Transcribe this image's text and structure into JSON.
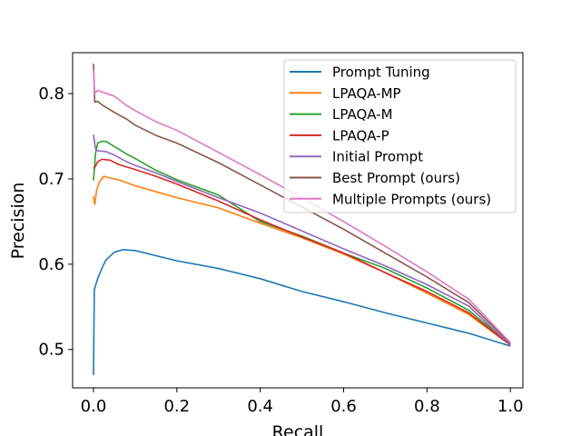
{
  "chart_data": {
    "type": "line",
    "title": "",
    "xlabel": "Recall",
    "ylabel": "Precision",
    "xlim": [
      -0.05,
      1.03
    ],
    "ylim": [
      0.455,
      0.848
    ],
    "xticks": [
      0.0,
      0.2,
      0.4,
      0.6,
      0.8,
      1.0
    ],
    "xtick_labels": [
      "0.0",
      "0.2",
      "0.4",
      "0.6",
      "0.8",
      "1.0"
    ],
    "yticks": [
      0.5,
      0.6,
      0.7,
      0.8
    ],
    "ytick_labels": [
      "0.5",
      "0.6",
      "0.7",
      "0.8"
    ],
    "grid": false,
    "legend_position": "top-right",
    "series": [
      {
        "name": "Prompt Tuning",
        "color": "#1f77b4",
        "points": [
          [
            0.0,
            0.47
          ],
          [
            0.002,
            0.57
          ],
          [
            0.005,
            0.575
          ],
          [
            0.01,
            0.583
          ],
          [
            0.02,
            0.595
          ],
          [
            0.03,
            0.605
          ],
          [
            0.05,
            0.614
          ],
          [
            0.07,
            0.617
          ],
          [
            0.1,
            0.616
          ],
          [
            0.15,
            0.61
          ],
          [
            0.2,
            0.604
          ],
          [
            0.3,
            0.595
          ],
          [
            0.4,
            0.583
          ],
          [
            0.5,
            0.568
          ],
          [
            0.6,
            0.556
          ],
          [
            0.7,
            0.543
          ],
          [
            0.8,
            0.531
          ],
          [
            0.9,
            0.519
          ],
          [
            1.0,
            0.504
          ]
        ]
      },
      {
        "name": "LPAQA-MP",
        "color": "#ff7f0e",
        "points": [
          [
            0.0,
            0.68
          ],
          [
            0.003,
            0.67
          ],
          [
            0.008,
            0.688
          ],
          [
            0.015,
            0.697
          ],
          [
            0.025,
            0.703
          ],
          [
            0.04,
            0.701
          ],
          [
            0.06,
            0.699
          ],
          [
            0.1,
            0.692
          ],
          [
            0.15,
            0.685
          ],
          [
            0.2,
            0.678
          ],
          [
            0.3,
            0.666
          ],
          [
            0.4,
            0.648
          ],
          [
            0.5,
            0.631
          ],
          [
            0.6,
            0.612
          ],
          [
            0.7,
            0.59
          ],
          [
            0.8,
            0.566
          ],
          [
            0.9,
            0.541
          ],
          [
            1.0,
            0.505
          ]
        ]
      },
      {
        "name": "LPAQA-M",
        "color": "#2ca02c",
        "points": [
          [
            0.0,
            0.698
          ],
          [
            0.005,
            0.73
          ],
          [
            0.01,
            0.742
          ],
          [
            0.02,
            0.744
          ],
          [
            0.03,
            0.744
          ],
          [
            0.05,
            0.738
          ],
          [
            0.08,
            0.729
          ],
          [
            0.1,
            0.724
          ],
          [
            0.15,
            0.71
          ],
          [
            0.2,
            0.699
          ],
          [
            0.3,
            0.681
          ],
          [
            0.4,
            0.65
          ],
          [
            0.5,
            0.633
          ],
          [
            0.6,
            0.613
          ],
          [
            0.7,
            0.595
          ],
          [
            0.8,
            0.572
          ],
          [
            0.9,
            0.546
          ],
          [
            1.0,
            0.506
          ]
        ]
      },
      {
        "name": "LPAQA-P",
        "color": "#d62728",
        "points": [
          [
            0.0,
            0.712
          ],
          [
            0.005,
            0.715
          ],
          [
            0.01,
            0.72
          ],
          [
            0.02,
            0.723
          ],
          [
            0.04,
            0.722
          ],
          [
            0.06,
            0.717
          ],
          [
            0.1,
            0.711
          ],
          [
            0.15,
            0.703
          ],
          [
            0.2,
            0.694
          ],
          [
            0.3,
            0.674
          ],
          [
            0.4,
            0.652
          ],
          [
            0.5,
            0.632
          ],
          [
            0.6,
            0.613
          ],
          [
            0.7,
            0.59
          ],
          [
            0.8,
            0.568
          ],
          [
            0.9,
            0.543
          ],
          [
            1.0,
            0.505
          ]
        ]
      },
      {
        "name": "Initial Prompt",
        "color": "#9467bd",
        "points": [
          [
            0.0,
            0.752
          ],
          [
            0.005,
            0.735
          ],
          [
            0.01,
            0.733
          ],
          [
            0.03,
            0.732
          ],
          [
            0.05,
            0.728
          ],
          [
            0.08,
            0.72
          ],
          [
            0.1,
            0.716
          ],
          [
            0.15,
            0.707
          ],
          [
            0.2,
            0.697
          ],
          [
            0.3,
            0.678
          ],
          [
            0.4,
            0.66
          ],
          [
            0.5,
            0.639
          ],
          [
            0.6,
            0.618
          ],
          [
            0.7,
            0.598
          ],
          [
            0.8,
            0.576
          ],
          [
            0.9,
            0.551
          ],
          [
            1.0,
            0.505
          ]
        ]
      },
      {
        "name": "Best Prompt (ours)",
        "color": "#8c564b",
        "points": [
          [
            0.0,
            0.835
          ],
          [
            0.003,
            0.79
          ],
          [
            0.01,
            0.791
          ],
          [
            0.02,
            0.787
          ],
          [
            0.05,
            0.778
          ],
          [
            0.08,
            0.77
          ],
          [
            0.1,
            0.763
          ],
          [
            0.15,
            0.751
          ],
          [
            0.2,
            0.742
          ],
          [
            0.3,
            0.719
          ],
          [
            0.4,
            0.693
          ],
          [
            0.5,
            0.667
          ],
          [
            0.6,
            0.641
          ],
          [
            0.7,
            0.613
          ],
          [
            0.8,
            0.585
          ],
          [
            0.9,
            0.555
          ],
          [
            1.0,
            0.507
          ]
        ]
      },
      {
        "name": "Multiple Prompts (ours)",
        "color": "#e377c2",
        "points": [
          [
            0.0,
            0.828
          ],
          [
            0.003,
            0.8
          ],
          [
            0.01,
            0.804
          ],
          [
            0.02,
            0.802
          ],
          [
            0.05,
            0.797
          ],
          [
            0.08,
            0.786
          ],
          [
            0.1,
            0.78
          ],
          [
            0.15,
            0.767
          ],
          [
            0.2,
            0.757
          ],
          [
            0.3,
            0.731
          ],
          [
            0.4,
            0.705
          ],
          [
            0.5,
            0.678
          ],
          [
            0.6,
            0.65
          ],
          [
            0.7,
            0.621
          ],
          [
            0.8,
            0.591
          ],
          [
            0.9,
            0.559
          ],
          [
            1.0,
            0.508
          ]
        ]
      }
    ]
  }
}
